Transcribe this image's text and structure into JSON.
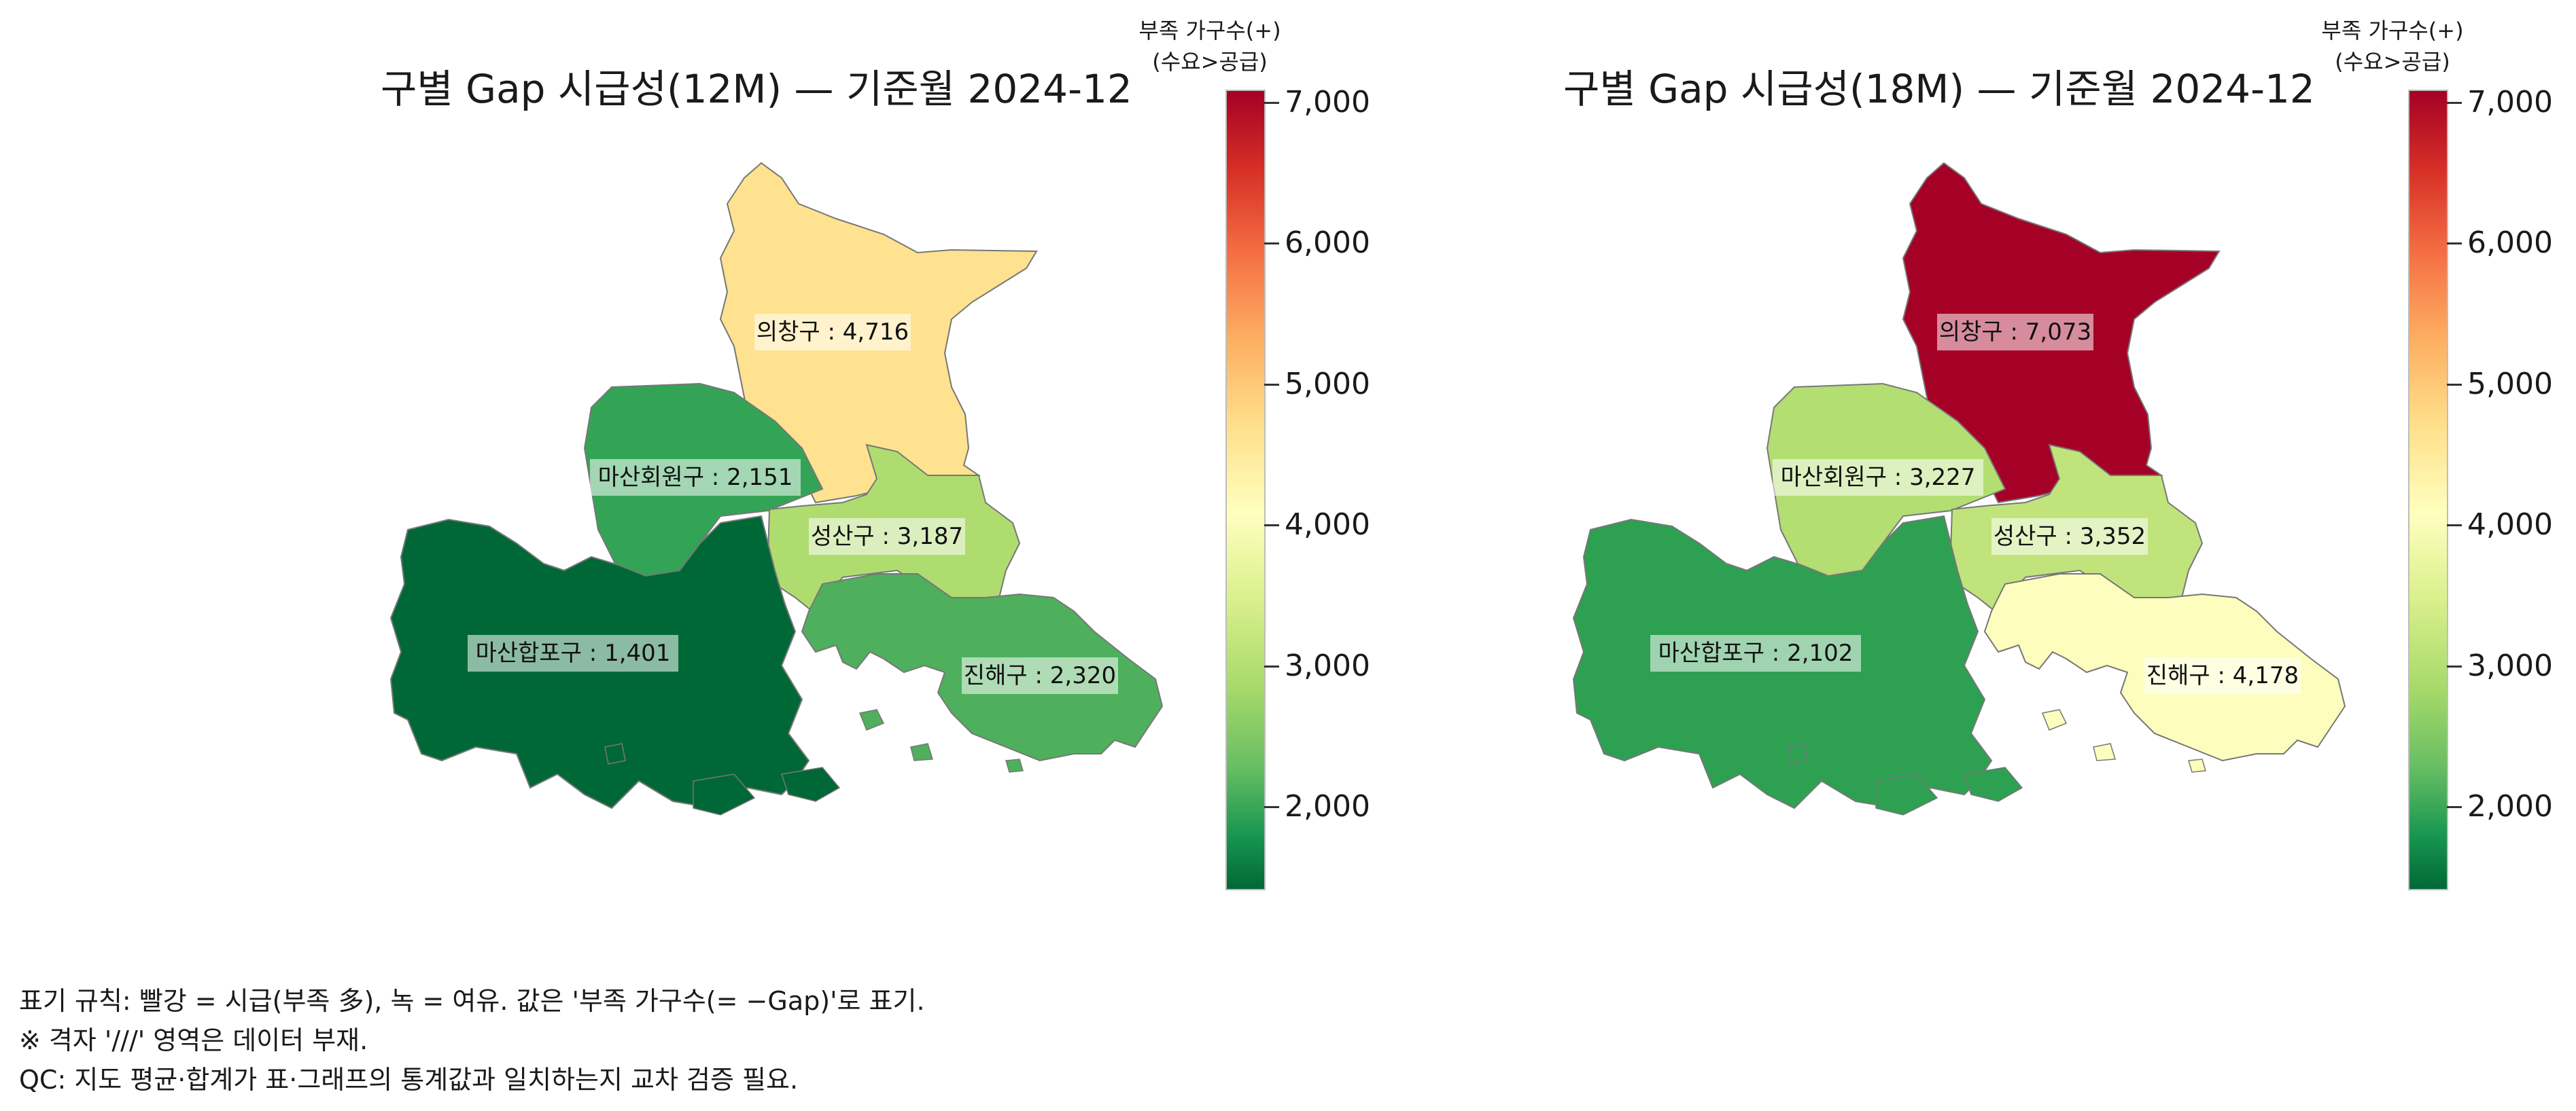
{
  "legend_title_line1": "부족 가구수(+)",
  "legend_title_line2": "(수요>공급)",
  "colorbar_ticks": [
    "7,000",
    "6,000",
    "5,000",
    "4,000",
    "3,000",
    "2,000"
  ],
  "colorbar_range": [
    1401,
    7073
  ],
  "colorscale": "RdYlGn (reversed)",
  "maps": [
    {
      "title": "구별 Gap 시급성(12M) — 기준월 2024-12",
      "regions": [
        {
          "name": "의창구",
          "label": "의창구 : 4,716",
          "value": 4716,
          "color": "#fee28f"
        },
        {
          "name": "마산회원구",
          "label": "마산회원구 : 2,151",
          "value": 2151,
          "color": "#33a455"
        },
        {
          "name": "성산구",
          "label": "성산구 : 3,187",
          "value": 3187,
          "color": "#afdc6f"
        },
        {
          "name": "마산합포구",
          "label": "마산합포구 : 1,401",
          "value": 1401,
          "color": "#006837"
        },
        {
          "name": "진해구",
          "label": "진해구 : 2,320",
          "value": 2320,
          "color": "#4eb05c"
        }
      ]
    },
    {
      "title": "구별 Gap 시급성(18M) — 기준월 2024-12",
      "regions": [
        {
          "name": "의창구",
          "label": "의창구 : 7,073",
          "value": 7073,
          "color": "#a50026"
        },
        {
          "name": "마산회원구",
          "label": "마산회원구 : 3,227",
          "value": 3227,
          "color": "#b3de72"
        },
        {
          "name": "성산구",
          "label": "성산구 : 3,352",
          "value": 3352,
          "color": "#c0e47b"
        },
        {
          "name": "마산합포구",
          "label": "마산합포구 : 2,102",
          "value": 2102,
          "color": "#2ea052"
        },
        {
          "name": "진해구",
          "label": "진해구 : 4,178",
          "value": 4178,
          "color": "#fdfdbe"
        }
      ]
    }
  ],
  "footer": {
    "line1": "표기 규칙: 빨강 = 시급(부족 多), 녹 = 여유.  값은 '부족 가구수(= −Gap)'로 표기.",
    "line2": "※ 격자 '///' 영역은 데이터 부재.",
    "line3": "QC: 지도 평균·합계가 표·그래프의 통계값과 일치하는지 교차 검증 필요."
  }
}
